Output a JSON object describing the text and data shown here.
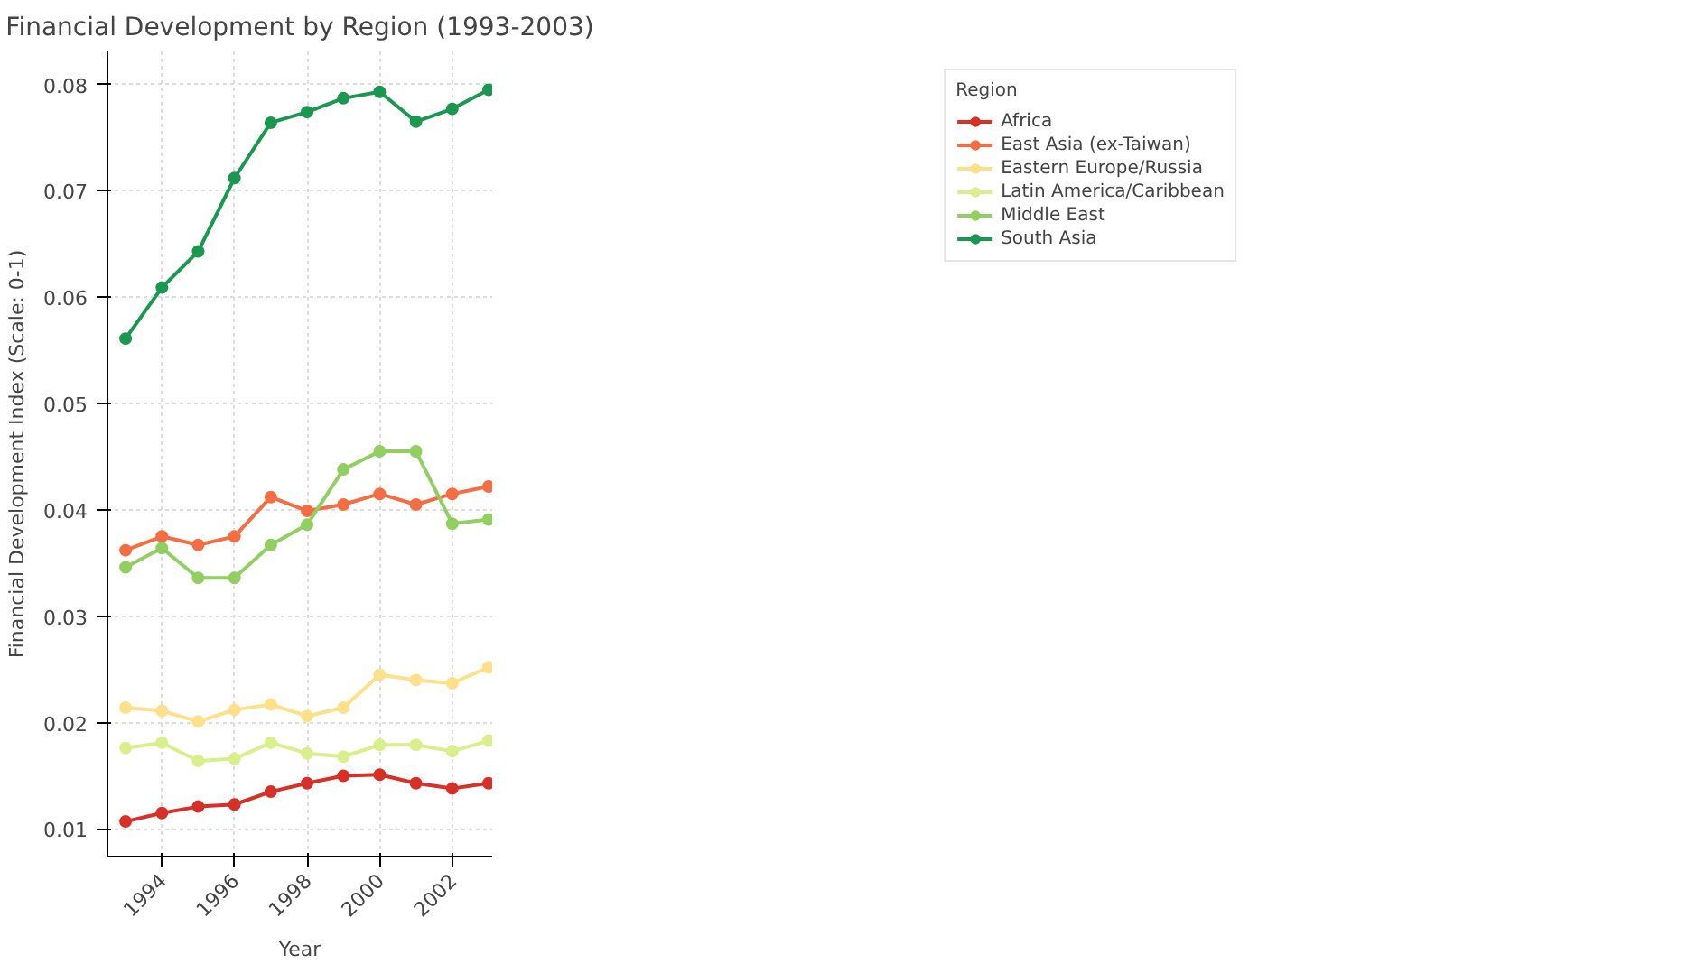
{
  "chart_data": {
    "type": "line",
    "title": "Financial Development by Region (1993-2003)",
    "xlabel": "Year",
    "ylabel": "Financial Development Index (Scale: 0-1)",
    "legend_title": "Region",
    "x": [
      1993,
      1994,
      1995,
      1996,
      1997,
      1998,
      1999,
      2000,
      2001,
      2002,
      2003
    ],
    "series": [
      {
        "name": "Africa",
        "color": "#d73027",
        "values": [
          0.0107,
          0.0115,
          0.0121,
          0.0123,
          0.0135,
          0.0143,
          0.015,
          0.0151,
          0.0143,
          0.0138,
          0.0143
        ]
      },
      {
        "name": "East Asia (ex-Taiwan)",
        "color": "#f46d43",
        "values": [
          0.0362,
          0.0375,
          0.0367,
          0.0375,
          0.0412,
          0.0399,
          0.0405,
          0.0415,
          0.0405,
          0.0415,
          0.0422
        ]
      },
      {
        "name": "Eastern Europe/Russia",
        "color": "#fee08b",
        "values": [
          0.0214,
          0.0211,
          0.0201,
          0.0212,
          0.0217,
          0.0206,
          0.0214,
          0.0245,
          0.024,
          0.0237,
          0.0252
        ]
      },
      {
        "name": "Latin America/Caribbean",
        "color": "#d9ef8b",
        "values": [
          0.0176,
          0.0181,
          0.0164,
          0.0166,
          0.0181,
          0.0171,
          0.0168,
          0.0179,
          0.0179,
          0.0173,
          0.0183
        ]
      },
      {
        "name": "Middle East",
        "color": "#91cf60",
        "values": [
          0.0346,
          0.0364,
          0.0336,
          0.0336,
          0.0367,
          0.0386,
          0.0438,
          0.0455,
          0.0455,
          0.0387,
          0.0391
        ]
      },
      {
        "name": "South Asia",
        "color": "#1a9850",
        "values": [
          0.0561,
          0.0609,
          0.0643,
          0.0712,
          0.0764,
          0.0774,
          0.0787,
          0.0793,
          0.0765,
          0.0777,
          0.0795
        ]
      }
    ],
    "xlim": [
      1992.5,
      2003.1
    ],
    "ylim": [
      0.0074,
      0.0831
    ],
    "xticks": [
      1994,
      1996,
      1998,
      2000,
      2002
    ],
    "yticks": [
      {
        "value": 0.01,
        "label": "0.01"
      },
      {
        "value": 0.02,
        "label": "0.02"
      },
      {
        "value": 0.03,
        "label": "0.03"
      },
      {
        "value": 0.04,
        "label": "0.04"
      },
      {
        "value": 0.05,
        "label": "0.05"
      },
      {
        "value": 0.06,
        "label": "0.06"
      },
      {
        "value": 0.07,
        "label": "0.07"
      },
      {
        "value": 0.08,
        "label": "0.08"
      }
    ],
    "grid": true,
    "legend": "top right",
    "marker": "circle",
    "line_style": "solid"
  }
}
